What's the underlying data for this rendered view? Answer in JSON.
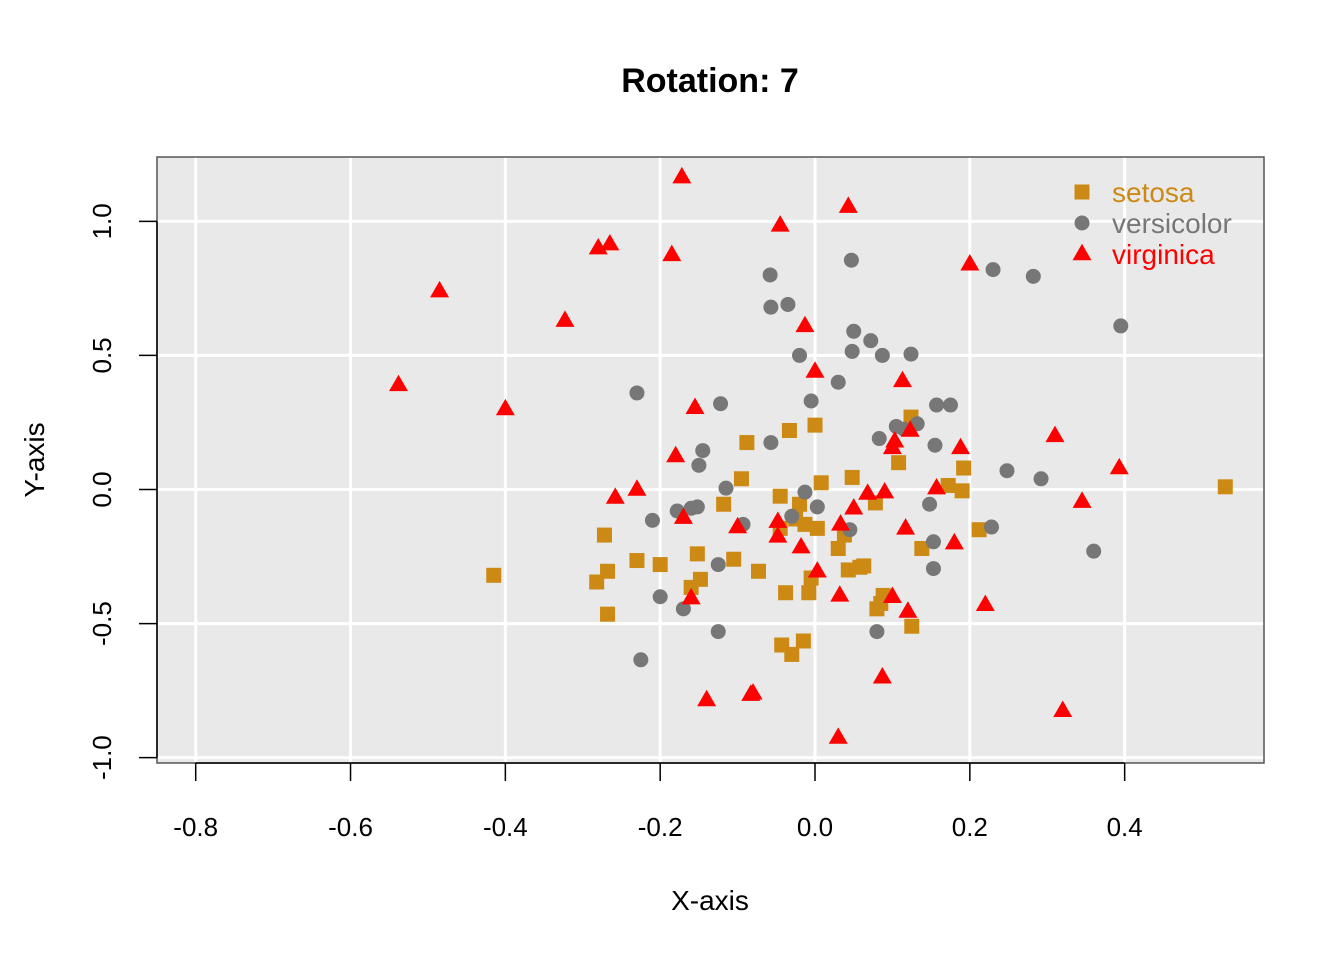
{
  "chart_data": {
    "type": "scatter",
    "title": "Rotation: 7",
    "xlabel": "X-axis",
    "ylabel": "Y-axis",
    "xlim": [
      -0.85,
      0.58
    ],
    "ylim": [
      -1.02,
      1.24
    ],
    "xticks": [
      -0.8,
      -0.6,
      -0.4,
      -0.2,
      0.0,
      0.2,
      0.4
    ],
    "xtick_labels": [
      "-0.8",
      "-0.6",
      "-0.4",
      "-0.2",
      "0.0",
      "0.2",
      "0.4"
    ],
    "yticks": [
      -1.0,
      -0.5,
      0.0,
      0.5,
      1.0
    ],
    "ytick_labels": [
      "-1.0",
      "-0.5",
      "0.0",
      "0.5",
      "1.0"
    ],
    "grid": true,
    "background": "#e9e9e9",
    "legend_position": "top-right",
    "series": [
      {
        "name": "setosa",
        "color": "#cc8a14",
        "marker": "square",
        "points": [
          [
            -0.415,
            -0.32
          ],
          [
            -0.282,
            -0.345
          ],
          [
            -0.272,
            -0.17
          ],
          [
            -0.268,
            -0.305
          ],
          [
            -0.268,
            -0.465
          ],
          [
            -0.23,
            -0.265
          ],
          [
            -0.2,
            -0.28
          ],
          [
            -0.16,
            -0.365
          ],
          [
            -0.152,
            -0.24
          ],
          [
            -0.148,
            -0.335
          ],
          [
            -0.118,
            -0.055
          ],
          [
            -0.105,
            -0.26
          ],
          [
            -0.095,
            0.04
          ],
          [
            -0.088,
            0.175
          ],
          [
            -0.073,
            -0.305
          ],
          [
            -0.045,
            -0.025
          ],
          [
            -0.045,
            -0.145
          ],
          [
            -0.043,
            -0.58
          ],
          [
            -0.038,
            -0.385
          ],
          [
            -0.033,
            0.22
          ],
          [
            -0.03,
            -0.615
          ],
          [
            -0.025,
            -0.11
          ],
          [
            -0.02,
            -0.055
          ],
          [
            -0.015,
            -0.565
          ],
          [
            -0.013,
            -0.13
          ],
          [
            -0.008,
            -0.385
          ],
          [
            -0.005,
            -0.33
          ],
          [
            0.0,
            0.24
          ],
          [
            0.003,
            -0.145
          ],
          [
            0.008,
            0.025
          ],
          [
            0.03,
            -0.22
          ],
          [
            0.038,
            -0.17
          ],
          [
            0.043,
            -0.3
          ],
          [
            0.048,
            0.045
          ],
          [
            0.058,
            -0.29
          ],
          [
            0.063,
            -0.285
          ],
          [
            0.078,
            -0.05
          ],
          [
            0.08,
            -0.445
          ],
          [
            0.085,
            -0.425
          ],
          [
            0.088,
            -0.395
          ],
          [
            0.108,
            0.1
          ],
          [
            0.124,
            0.27
          ],
          [
            0.125,
            -0.51
          ],
          [
            0.138,
            -0.22
          ],
          [
            0.172,
            0.015
          ],
          [
            0.19,
            -0.005
          ],
          [
            0.192,
            0.08
          ],
          [
            0.212,
            -0.15
          ],
          [
            0.53,
            0.01
          ]
        ]
      },
      {
        "name": "versicolor",
        "color": "#777777",
        "marker": "circle",
        "points": [
          [
            -0.23,
            0.36
          ],
          [
            -0.225,
            -0.635
          ],
          [
            -0.21,
            -0.115
          ],
          [
            -0.2,
            -0.4
          ],
          [
            -0.178,
            -0.08
          ],
          [
            -0.17,
            -0.445
          ],
          [
            -0.16,
            -0.07
          ],
          [
            -0.152,
            -0.065
          ],
          [
            -0.15,
            0.09
          ],
          [
            -0.145,
            0.145
          ],
          [
            -0.125,
            -0.28
          ],
          [
            -0.125,
            -0.53
          ],
          [
            -0.122,
            0.32
          ],
          [
            -0.115,
            0.005
          ],
          [
            -0.093,
            -0.13
          ],
          [
            -0.058,
            0.8
          ],
          [
            -0.057,
            0.68
          ],
          [
            -0.057,
            0.175
          ],
          [
            -0.035,
            0.69
          ],
          [
            -0.03,
            -0.1
          ],
          [
            -0.02,
            0.5
          ],
          [
            -0.013,
            -0.01
          ],
          [
            -0.005,
            0.33
          ],
          [
            0.003,
            -0.065
          ],
          [
            0.03,
            0.4
          ],
          [
            0.045,
            -0.15
          ],
          [
            0.047,
            0.855
          ],
          [
            0.048,
            0.515
          ],
          [
            0.05,
            0.59
          ],
          [
            0.072,
            0.555
          ],
          [
            0.08,
            -0.53
          ],
          [
            0.083,
            0.19
          ],
          [
            0.087,
            0.5
          ],
          [
            0.105,
            0.235
          ],
          [
            0.115,
            0.225
          ],
          [
            0.124,
            0.505
          ],
          [
            0.132,
            0.245
          ],
          [
            0.148,
            -0.055
          ],
          [
            0.153,
            -0.195
          ],
          [
            0.153,
            -0.295
          ],
          [
            0.155,
            0.165
          ],
          [
            0.157,
            0.315
          ],
          [
            0.175,
            0.315
          ],
          [
            0.228,
            -0.14
          ],
          [
            0.23,
            0.82
          ],
          [
            0.248,
            0.07
          ],
          [
            0.282,
            0.795
          ],
          [
            0.292,
            0.04
          ],
          [
            0.36,
            -0.23
          ],
          [
            0.395,
            0.61
          ]
        ]
      },
      {
        "name": "virginica",
        "color": "#ff0000",
        "marker": "triangle",
        "points": [
          [
            -0.538,
            0.39
          ],
          [
            -0.485,
            0.74
          ],
          [
            -0.4,
            0.3
          ],
          [
            -0.323,
            0.63
          ],
          [
            -0.28,
            0.9
          ],
          [
            -0.265,
            0.915
          ],
          [
            -0.258,
            -0.03
          ],
          [
            -0.23,
            0.0
          ],
          [
            -0.185,
            0.875
          ],
          [
            -0.18,
            0.125
          ],
          [
            -0.172,
            1.165
          ],
          [
            -0.17,
            -0.105
          ],
          [
            -0.16,
            -0.405
          ],
          [
            -0.155,
            0.305
          ],
          [
            -0.14,
            -0.785
          ],
          [
            -0.1,
            -0.14
          ],
          [
            -0.083,
            -0.765
          ],
          [
            -0.08,
            -0.76
          ],
          [
            -0.048,
            -0.12
          ],
          [
            -0.048,
            -0.175
          ],
          [
            -0.045,
            0.985
          ],
          [
            -0.018,
            -0.215
          ],
          [
            -0.013,
            0.61
          ],
          [
            0.0,
            0.44
          ],
          [
            0.003,
            -0.305
          ],
          [
            0.03,
            -0.925
          ],
          [
            0.032,
            -0.395
          ],
          [
            0.033,
            -0.13
          ],
          [
            0.043,
            1.055
          ],
          [
            0.05,
            -0.07
          ],
          [
            0.068,
            -0.015
          ],
          [
            0.087,
            -0.7
          ],
          [
            0.09,
            -0.01
          ],
          [
            0.1,
            -0.4
          ],
          [
            0.1,
            0.155
          ],
          [
            0.103,
            0.18
          ],
          [
            0.113,
            0.405
          ],
          [
            0.117,
            -0.145
          ],
          [
            0.12,
            -0.455
          ],
          [
            0.123,
            0.22
          ],
          [
            0.157,
            0.005
          ],
          [
            0.18,
            -0.2
          ],
          [
            0.188,
            0.155
          ],
          [
            0.2,
            0.84
          ],
          [
            0.22,
            -0.43
          ],
          [
            0.31,
            0.2
          ],
          [
            0.32,
            -0.825
          ],
          [
            0.345,
            -0.045
          ],
          [
            0.393,
            0.08
          ]
        ]
      }
    ]
  }
}
